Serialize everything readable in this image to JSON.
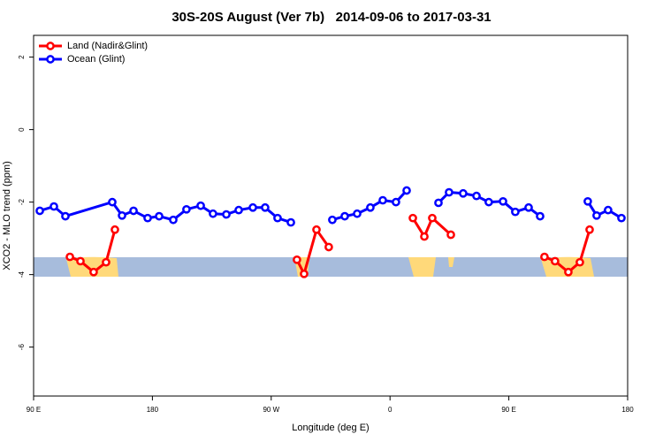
{
  "chart_data": {
    "type": "line",
    "title": "30S-20S August (Ver 7b)   2014-09-06 to 2017-03-31",
    "xlabel": "Longitude (deg E)",
    "ylabel": "XCO2 - MLO trend (ppm)",
    "xlim": [
      90,
      540
    ],
    "xticks": [
      {
        "value": 90,
        "label": "90 E"
      },
      180,
      {
        "value": 270,
        "label": "90 W"
      },
      {
        "value": 360,
        "label": "0"
      },
      {
        "value": 450,
        "label": "90 E"
      },
      {
        "value": 540,
        "label": "180"
      }
    ],
    "ylim": [
      -7.35,
      2.6
    ],
    "yticks": [
      -6,
      -4,
      -2,
      0,
      2
    ],
    "legend": "top-left",
    "series": [
      {
        "name": "Land (Nadir&Glint)",
        "color": "#ff0000",
        "x": [
          117.5,
          125.5,
          135.5,
          144.9,
          151.6,
          null,
          289.5,
          294.9,
          304.3,
          313.6,
          null,
          377.3,
          386,
          392,
          406.1,
          null,
          477,
          485,
          495.1,
          503.8,
          511.2
        ],
        "values": [
          -3.51,
          -3.63,
          -3.93,
          -3.66,
          -2.76,
          null,
          -3.59,
          -3.98,
          -2.76,
          -3.24,
          null,
          -2.44,
          -2.95,
          -2.44,
          -2.9,
          null,
          -3.51,
          -3.63,
          -3.93,
          -3.66,
          -2.76
        ]
      },
      {
        "name": "Ocean (Glint)",
        "color": "#0000ff",
        "x": [
          94.7,
          105.4,
          114.1,
          149.6,
          157,
          165.7,
          176.4,
          185.1,
          195.8,
          205.8,
          216.6,
          225.9,
          236,
          245.4,
          256.1,
          265.4,
          274.8,
          284.9,
          null,
          316.3,
          325.7,
          335.1,
          345.1,
          354.5,
          364.5,
          372.6,
          null,
          396.7,
          404.7,
          415.4,
          425.5,
          434.8,
          445.6,
          454.9,
          465,
          473.7,
          null,
          509.8,
          516.5,
          525.2,
          535.3
        ],
        "values": [
          -2.24,
          -2.12,
          -2.39,
          -2.0,
          -2.37,
          -2.24,
          -2.44,
          -2.39,
          -2.49,
          -2.2,
          -2.1,
          -2.32,
          -2.34,
          -2.22,
          -2.15,
          -2.15,
          -2.44,
          -2.56,
          null,
          -2.49,
          -2.39,
          -2.32,
          -2.15,
          -1.95,
          -2.0,
          -1.68,
          null,
          -2.02,
          -1.73,
          -1.76,
          -1.83,
          -2.0,
          -1.98,
          -2.27,
          -2.15,
          -2.39,
          null,
          -1.98,
          -2.37,
          -2.22,
          -2.44
        ]
      }
    ]
  }
}
